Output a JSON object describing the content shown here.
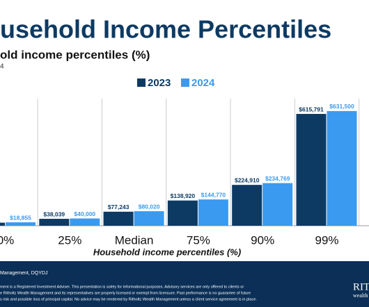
{
  "chart_data": {
    "type": "bar",
    "title": "usehold Income Percentiles",
    "subtitle": "old income percentiles (%)",
    "subtitle_note": "4",
    "x_label": "Household income percentiles (%)",
    "categories": [
      "0%",
      "25%",
      "Median",
      "75%",
      "90%",
      "99%"
    ],
    "series": [
      {
        "name": "2023",
        "color": "#0d3a63",
        "values": [
          17000,
          38039,
          77243,
          138920,
          224910,
          615791
        ],
        "value_labels": [
          null,
          "$38,039",
          "$77,243",
          "$138,920",
          "$224,910",
          "$615,791"
        ]
      },
      {
        "name": "2024",
        "color": "#3a9af0",
        "values": [
          18855,
          40000,
          80020,
          144770,
          234769,
          631500
        ],
        "value_labels": [
          "$18,855",
          "$40,000",
          "$80,020",
          "$144,770",
          "$234,769",
          "$631,500"
        ]
      }
    ],
    "ylim": [
      0,
      700000
    ],
    "source": "Management, DQYDJ",
    "disclaimer": [
      "ment is a Registered Investment Adviser. This presentation is solely for informational purposes. Advisory services are only offered to clients or",
      "e Ritholtz Wealth Management and its representatives are properly licensed or exempt from licensure. Past performance is no guarantee of future",
      "s risk and possible loss of principal capital. No advice may be rendered by Ritholtz Wealth Management unless a client service agreement is in place."
    ],
    "logo": [
      "RIT",
      "wealth"
    ]
  }
}
